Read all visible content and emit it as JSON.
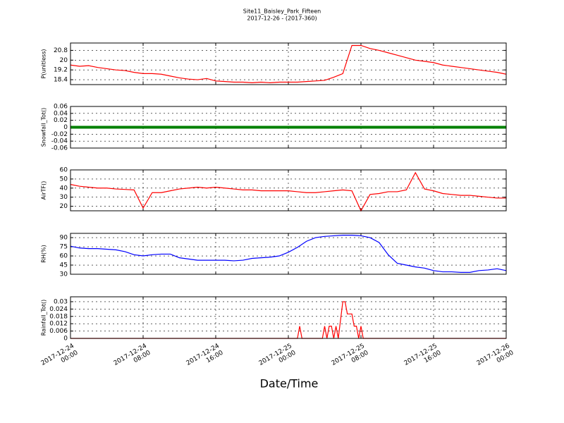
{
  "chart_data": {
    "title": "Site11_Baisley_Park_Fifteen",
    "subtitle": "2017-12-26 - (2017-360)",
    "x_label": "Date/Time",
    "xlim": [
      "2017-12-24 00:00",
      "2017-12-26 00:00"
    ],
    "xticks": [
      "2017-12-24 00:00",
      "2017-12-24 08:00",
      "2017-12-24 16:00",
      "2017-12-25 00:00",
      "2017-12-25 08:00",
      "2017-12-25 16:00",
      "2017-12-26 00:00"
    ],
    "grid": true,
    "x": [
      "2017-12-24 00:00",
      "2017-12-24 01:00",
      "2017-12-24 02:00",
      "2017-12-24 03:00",
      "2017-12-24 04:00",
      "2017-12-24 05:00",
      "2017-12-24 06:00",
      "2017-12-24 07:00",
      "2017-12-24 08:00",
      "2017-12-24 09:00",
      "2017-12-24 10:00",
      "2017-12-24 11:00",
      "2017-12-24 12:00",
      "2017-12-24 13:00",
      "2017-12-24 14:00",
      "2017-12-24 15:00",
      "2017-12-24 16:00",
      "2017-12-24 17:00",
      "2017-12-24 18:00",
      "2017-12-24 19:00",
      "2017-12-24 20:00",
      "2017-12-24 21:00",
      "2017-12-24 22:00",
      "2017-12-24 23:00",
      "2017-12-25 00:00",
      "2017-12-25 01:00",
      "2017-12-25 02:00",
      "2017-12-25 03:00",
      "2017-12-25 04:00",
      "2017-12-25 05:00",
      "2017-12-25 06:00",
      "2017-12-25 07:00",
      "2017-12-25 08:00",
      "2017-12-25 09:00",
      "2017-12-25 10:00",
      "2017-12-25 11:00",
      "2017-12-25 12:00",
      "2017-12-25 13:00",
      "2017-12-25 14:00",
      "2017-12-25 15:00",
      "2017-12-25 16:00",
      "2017-12-25 17:00",
      "2017-12-25 18:00",
      "2017-12-25 19:00",
      "2017-12-25 20:00",
      "2017-12-25 21:00",
      "2017-12-25 22:00",
      "2017-12-25 23:00",
      "2017-12-26 00:00"
    ],
    "panels": [
      {
        "type": "line",
        "y_label": "P(unitless)",
        "color": "#ff0000",
        "ylim": [
          18.0,
          21.4
        ],
        "yticks": [
          18.4,
          19.2,
          20.0,
          20.8
        ],
        "values": [
          19.6,
          19.5,
          19.55,
          19.4,
          19.3,
          19.2,
          19.15,
          19.0,
          18.9,
          18.9,
          18.85,
          18.7,
          18.55,
          18.45,
          18.4,
          18.5,
          18.3,
          18.25,
          18.2,
          18.2,
          18.15,
          18.2,
          18.15,
          18.2,
          18.2,
          18.2,
          18.25,
          18.3,
          18.35,
          18.6,
          18.9,
          21.2,
          21.2,
          20.95,
          20.8,
          20.6,
          20.4,
          20.2,
          20.0,
          19.9,
          19.8,
          19.6,
          19.5,
          19.4,
          19.3,
          19.2,
          19.1,
          19.0,
          18.85
        ]
      },
      {
        "type": "line",
        "y_label": "Snowfall_Tot()",
        "color": "#008000",
        "ylim": [
          -0.06,
          0.06
        ],
        "yticks": [
          -0.06,
          -0.04,
          -0.02,
          0.0,
          0.02,
          0.04,
          0.06
        ],
        "values": [
          0,
          0,
          0,
          0,
          0,
          0,
          0,
          0,
          0,
          0,
          0,
          0,
          0,
          0,
          0,
          0,
          0,
          0,
          0,
          0,
          0,
          0,
          0,
          0,
          0,
          0,
          0,
          0,
          0,
          0,
          0,
          0,
          0,
          0,
          0,
          0,
          0,
          0,
          0,
          0,
          0,
          0,
          0,
          0,
          0,
          0,
          0,
          0,
          0
        ]
      },
      {
        "type": "line",
        "y_label": "AirTF()",
        "color": "#ff0000",
        "ylim": [
          15,
          60
        ],
        "yticks": [
          20,
          30,
          40,
          50,
          60
        ],
        "values": [
          44,
          42,
          41,
          40,
          40,
          39,
          38.5,
          38,
          18,
          35,
          35,
          37,
          39,
          40,
          41,
          40,
          41,
          40,
          39,
          38,
          38,
          37,
          37,
          37,
          37,
          36,
          35,
          35,
          36,
          37,
          38,
          37,
          15,
          33,
          34,
          36,
          36,
          38,
          57,
          39,
          37,
          34,
          33,
          32,
          32,
          31,
          30,
          29,
          29
        ]
      },
      {
        "type": "line",
        "y_label": "RH(%)",
        "color": "#0000ff",
        "ylim": [
          30,
          97
        ],
        "yticks": [
          30,
          45,
          60,
          75,
          90
        ],
        "values": [
          76,
          73,
          72,
          72,
          71,
          70,
          67,
          62,
          60,
          62,
          63,
          63,
          57,
          55,
          53,
          53,
          53,
          53,
          52,
          53,
          56,
          57,
          58,
          60,
          66,
          74,
          84,
          90,
          92,
          93,
          94,
          94,
          93,
          90,
          82,
          62,
          48,
          45,
          42,
          40,
          36,
          34,
          34,
          33,
          33,
          36,
          37,
          39,
          36
        ]
      },
      {
        "type": "line",
        "y_label": "Rainfall_Tot()",
        "color": "#ff0000",
        "ylim": [
          0,
          0.034
        ],
        "yticks": [
          0.0,
          0.006,
          0.012,
          0.018,
          0.024,
          0.03
        ],
        "x": [
          "2017-12-24 00:00",
          "2017-12-25 01:00",
          "2017-12-25 01:15",
          "2017-12-25 01:30",
          "2017-12-25 03:45",
          "2017-12-25 04:00",
          "2017-12-25 04:15",
          "2017-12-25 04:30",
          "2017-12-25 04:45",
          "2017-12-25 05:00",
          "2017-12-25 05:15",
          "2017-12-25 05:30",
          "2017-12-25 06:00",
          "2017-12-25 06:15",
          "2017-12-25 06:30",
          "2017-12-25 06:45",
          "2017-12-25 07:00",
          "2017-12-25 07:15",
          "2017-12-25 07:30",
          "2017-12-25 07:45",
          "2017-12-25 08:00",
          "2017-12-25 08:15",
          "2017-12-26 00:00"
        ],
        "values": [
          0,
          0,
          0.01,
          0,
          0,
          0.01,
          0,
          0.01,
          0.01,
          0,
          0.01,
          0,
          0.03,
          0.03,
          0.02,
          0.02,
          0.02,
          0.01,
          0.01,
          0,
          0.01,
          0,
          0
        ]
      }
    ]
  }
}
